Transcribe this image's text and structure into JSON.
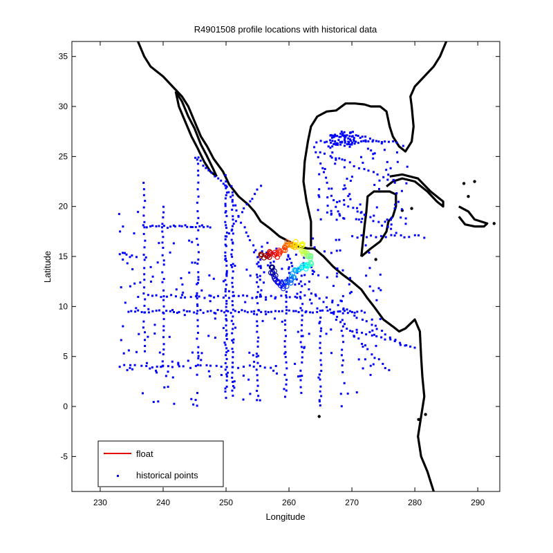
{
  "chart_data": {
    "type": "scatter",
    "title": "R4901508 profile locations with historical data",
    "xlabel": "Longitude",
    "ylabel": "Latitude",
    "xlim": [
      225.5,
      293.5
    ],
    "ylim": [
      -8.5,
      36.5
    ],
    "xticks": [
      230,
      240,
      250,
      260,
      270,
      280,
      290
    ],
    "yticks": [
      -5,
      0,
      5,
      10,
      15,
      20,
      25,
      30,
      35
    ],
    "grid": false,
    "legend": {
      "placement": "bottom-left",
      "entries": [
        {
          "label": "float",
          "color": "#e00000",
          "marker": "line"
        },
        {
          "label": "historical points",
          "color": "#0000ff",
          "marker": "dot"
        }
      ]
    },
    "colors": {
      "coastline": "#000000",
      "historical": "#0000ff",
      "float": "#e00000"
    },
    "series": [
      {
        "name": "historical points",
        "color": "#0000ff",
        "tracks": [
          {
            "lon": [
              237.0,
              247.5
            ],
            "lat": [
              18.0,
              18.0
            ],
            "n": 24
          },
          {
            "lon": [
              245.0,
              250.0
            ],
            "lat": [
              25.0,
              22.0
            ],
            "n": 12
          },
          {
            "lon": [
              250.0,
              256.0
            ],
            "lat": [
              22.0,
              13.5
            ],
            "n": 18
          },
          {
            "lon": [
              250.0,
              255.5
            ],
            "lat": [
              17.0,
              22.0
            ],
            "n": 14
          },
          {
            "lon": [
              250.0,
              250.0
            ],
            "lat": [
              1.0,
              23.0
            ],
            "n": 60
          },
          {
            "lon": [
              251.0,
              251.0
            ],
            "lat": [
              1.0,
              22.0
            ],
            "n": 45
          },
          {
            "lon": [
              240.0,
              240.0
            ],
            "lat": [
              4.0,
              20.0
            ],
            "n": 28
          },
          {
            "lon": [
              245.5,
              245.5
            ],
            "lat": [
              4.0,
              25.0
            ],
            "n": 32
          },
          {
            "lon": [
              237.0,
              237.0
            ],
            "lat": [
              6.0,
              22.5
            ],
            "n": 26
          },
          {
            "lon": [
              234.5,
              272.0
            ],
            "lat": [
              9.5,
              9.5
            ],
            "n": 70
          },
          {
            "lon": [
              237.5,
              262.5
            ],
            "lat": [
              11.0,
              11.0
            ],
            "n": 34
          },
          {
            "lon": [
              233.0,
              258.0
            ],
            "lat": [
              4.0,
              4.0
            ],
            "n": 30
          },
          {
            "lon": [
              255.0,
              255.0
            ],
            "lat": [
              0.5,
              13.0
            ],
            "n": 24
          },
          {
            "lon": [
              259.5,
              259.5
            ],
            "lat": [
              1.0,
              11.5
            ],
            "n": 20
          },
          {
            "lon": [
              262.0,
              262.0
            ],
            "lat": [
              1.5,
              12.0
            ],
            "n": 20
          },
          {
            "lon": [
              265.0,
              265.0
            ],
            "lat": [
              0.0,
              9.0
            ],
            "n": 18
          },
          {
            "lon": [
              268.5,
              268.5
            ],
            "lat": [
              3.5,
              11.0
            ],
            "n": 14
          },
          {
            "lon": [
              262.0,
              276.0
            ],
            "lat": [
              12.5,
              3.5
            ],
            "n": 26
          },
          {
            "lon": [
              267.0,
              278.5
            ],
            "lat": [
              10.5,
              6.0
            ],
            "n": 16
          },
          {
            "lon": [
              270.0,
              280.0
            ],
            "lat": [
              7.5,
              6.0
            ],
            "n": 14
          },
          {
            "lon": [
              264.5,
              277.0
            ],
            "lat": [
              26.5,
              26.5
            ],
            "n": 24
          },
          {
            "lon": [
              267.0,
              272.0
            ],
            "lat": [
              27.0,
              27.0
            ],
            "n": 16
          },
          {
            "lon": [
              265.0,
              276.5
            ],
            "lat": [
              25.5,
              22.5
            ],
            "n": 16
          },
          {
            "lon": [
              268.0,
              277.0
            ],
            "lat": [
              20.5,
              17.5
            ],
            "n": 14
          },
          {
            "lon": [
              264.0,
              268.0
            ],
            "lat": [
              26.0,
              19.0
            ],
            "n": 14
          },
          {
            "lon": [
              270.0,
              281.5
            ],
            "lat": [
              17.0,
              17.0
            ],
            "n": 16
          }
        ],
        "clusters": [
          {
            "lon": [
              233.0,
              236.0
            ],
            "lat": [
              12.0,
              19.5
            ],
            "n": 14
          },
          {
            "lon": [
              230.0,
              283.0
            ],
            "lat": [
              0.0,
              17.0
            ],
            "n": 220
          },
          {
            "lon": [
              264.5,
              279.0
            ],
            "lat": [
              18.0,
              27.0
            ],
            "n": 90
          },
          {
            "lon": [
              266.5,
              270.5
            ],
            "lat": [
              26.0,
              27.5
            ],
            "n": 50
          },
          {
            "lon": [
              255.0,
              264.0
            ],
            "lat": [
              11.5,
              16.0
            ],
            "n": 40
          }
        ]
      },
      {
        "name": "float",
        "color_scale": "jet",
        "points": [
          [
            255.8,
            15.0
          ],
          [
            256.6,
            15.1
          ],
          [
            257.2,
            15.3
          ],
          [
            257.9,
            15.1
          ],
          [
            258.6,
            15.4
          ],
          [
            259.2,
            15.8
          ],
          [
            259.6,
            16.3
          ],
          [
            260.2,
            16.1
          ],
          [
            260.8,
            15.8
          ],
          [
            261.3,
            16.2
          ],
          [
            261.9,
            16.0
          ],
          [
            262.3,
            15.5
          ],
          [
            262.8,
            15.2
          ],
          [
            263.3,
            14.8
          ],
          [
            263.5,
            14.5
          ],
          [
            263.0,
            14.1
          ],
          [
            262.4,
            14.0
          ],
          [
            261.8,
            13.8
          ],
          [
            261.2,
            13.4
          ],
          [
            260.6,
            13.0
          ],
          [
            260.1,
            12.6
          ],
          [
            259.6,
            12.3
          ],
          [
            259.0,
            12.0
          ],
          [
            258.4,
            12.4
          ],
          [
            257.8,
            12.9
          ],
          [
            257.4,
            13.5
          ],
          [
            257.2,
            14.1
          ]
        ]
      }
    ]
  }
}
